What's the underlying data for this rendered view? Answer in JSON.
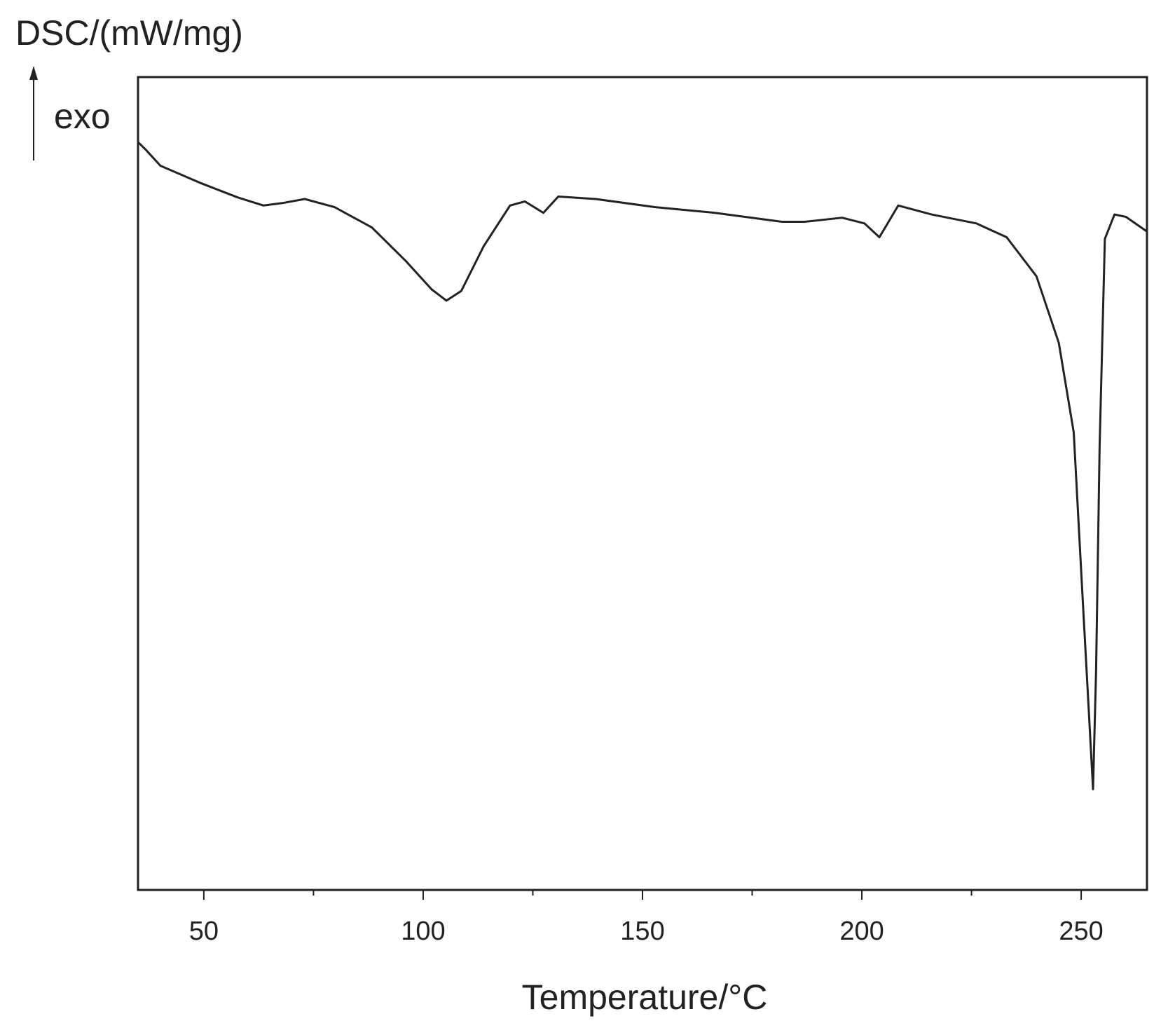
{
  "chart_data": {
    "type": "line",
    "y_label": "DSC/(mW/mg)",
    "annotation": "exo",
    "x_label": "Temperature/°C",
    "x": [
      35,
      36.7,
      40.1,
      49.1,
      57.7,
      63.6,
      67.9,
      73,
      79.8,
      88.3,
      96,
      101.9,
      105.3,
      108.7,
      113.8,
      119.8,
      123.2,
      127.4,
      130.8,
      139.3,
      152.9,
      166.5,
      181.8,
      187,
      195.5,
      200.6,
      204,
      208.3,
      215.9,
      226.1,
      233,
      239.8,
      244.9,
      248.3,
      250.3,
      251.7,
      252.7,
      253.4,
      254.2,
      255.4,
      257.6,
      260.2,
      265
    ],
    "series": [
      {
        "color": "#222222",
        "values": [
          92.0,
          91.1,
          89.1,
          87.0,
          85.2,
          84.2,
          84.5,
          85.0,
          84.0,
          81.5,
          77.4,
          73.9,
          72.5,
          73.7,
          79.2,
          84.2,
          84.7,
          83.3,
          85.3,
          85.0,
          84.0,
          83.3,
          82.2,
          82.2,
          82.7,
          82.0,
          80.3,
          84.2,
          83.1,
          82.0,
          80.3,
          75.5,
          67.3,
          56.3,
          36.2,
          22.4,
          12.4,
          27.0,
          54.5,
          80.1,
          83.1,
          82.8,
          81.0
        ]
      }
    ],
    "xlim": [
      35,
      265
    ],
    "xticks": [
      50,
      100,
      150,
      200,
      250
    ],
    "xminor_ticks": [
      75,
      125,
      175,
      225
    ],
    "ylim": [
      0,
      100
    ]
  }
}
